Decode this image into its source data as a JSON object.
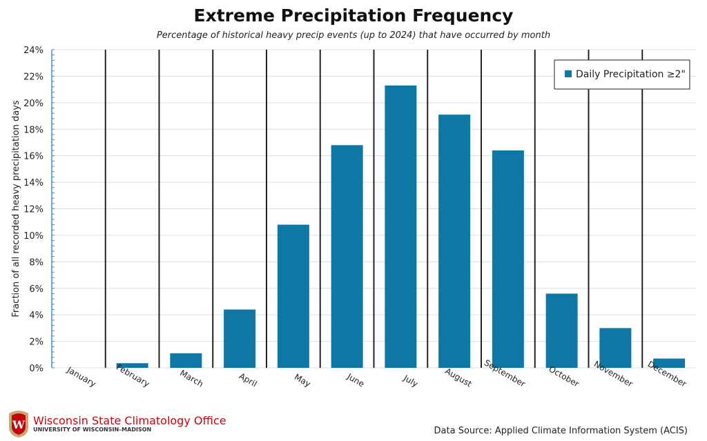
{
  "chart_data": {
    "type": "bar",
    "title": "Extreme Precipitation Frequency",
    "subtitle": "Percentage of historical heavy precip events (up to 2024) that have occurred by month",
    "ylabel": "Fraction of all recorded heavy precipitation days",
    "xlabel": "",
    "ylim": [
      0,
      24
    ],
    "yticks": [
      "0%",
      "2%",
      "4%",
      "6%",
      "8%",
      "10%",
      "12%",
      "14%",
      "16%",
      "18%",
      "20%",
      "22%",
      "24%"
    ],
    "categories": [
      "January",
      "February",
      "March",
      "April",
      "May",
      "June",
      "July",
      "August",
      "September",
      "October",
      "November",
      "December"
    ],
    "series": [
      {
        "name": "Daily Precipitation ≥2\"",
        "color": "#0e77a3",
        "values": [
          0,
          0.35,
          1.1,
          4.4,
          10.8,
          16.8,
          21.3,
          19.1,
          16.4,
          5.6,
          3.0,
          0.7
        ]
      }
    ],
    "legend": "top-right",
    "grid": true
  },
  "footer": {
    "org": "Wisconsin State Climatology Office",
    "university": "UNIVERSITY OF WISCONSIN–MADISON",
    "source": "Data Source: Applied Climate Information System (ACIS)"
  }
}
